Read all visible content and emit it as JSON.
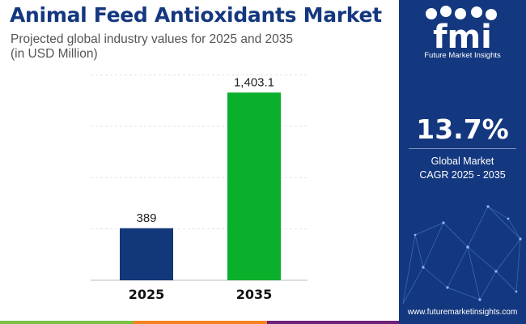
{
  "header": {
    "title": "Animal Feed Antioxidants Market",
    "subtitle_line1": "Projected global industry values for 2025 and 2035",
    "subtitle_line2": "(in USD Million)"
  },
  "chart_data": {
    "type": "bar",
    "title": "Animal Feed Antioxidants Market",
    "subtitle": "Projected global industry values for 2025 and 2035 (in USD Million)",
    "categories": [
      "2025",
      "2035"
    ],
    "values": [
      389,
      1403.1
    ],
    "value_labels": [
      "389",
      "1,403.1"
    ],
    "bar_colors": [
      "#13387a",
      "#0aaf2c"
    ],
    "xlabel": "",
    "ylabel": "USD Million",
    "ylim": [
      0,
      1550
    ],
    "grid": true
  },
  "sidebar": {
    "logo_text": "fmi",
    "logo_caption": "Future Market Insights",
    "cagr_value": "13.7%",
    "cagr_label_line1": "Global Market",
    "cagr_label_line2": "CAGR 2025 - 2035",
    "website": "www.futuremarketinsights.com"
  },
  "colors": {
    "brand_navy": "#14387f",
    "bar_2025": "#13387a",
    "bar_2035": "#0aaf2c",
    "footer": [
      "#7ac143",
      "#f58220",
      "#6d2077",
      "#14387f"
    ]
  }
}
